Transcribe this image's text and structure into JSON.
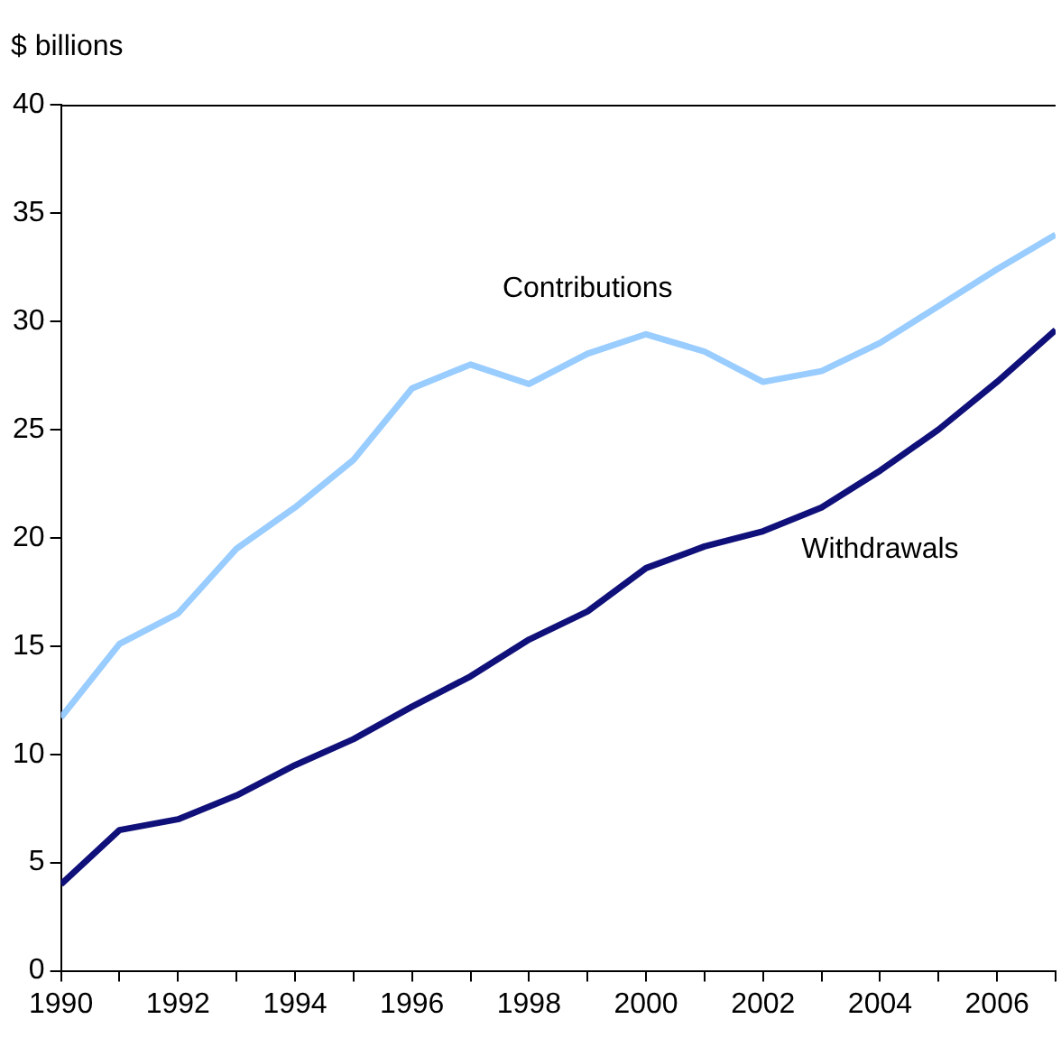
{
  "chart_data": {
    "type": "line",
    "ylabel": "$ billions",
    "x": [
      1990,
      1991,
      1992,
      1993,
      1994,
      1995,
      1996,
      1997,
      1998,
      1999,
      2000,
      2001,
      2002,
      2003,
      2004,
      2005,
      2006,
      2007
    ],
    "series": [
      {
        "name": "Contributions",
        "color": "#99ccff",
        "values": [
          11.7,
          15.1,
          16.5,
          19.5,
          21.4,
          23.6,
          26.9,
          28.0,
          27.1,
          28.5,
          29.4,
          28.6,
          27.2,
          27.7,
          29.0,
          30.7,
          32.4,
          34.0
        ]
      },
      {
        "name": "Withdrawals",
        "color": "#10107a",
        "values": [
          4.0,
          6.5,
          7.0,
          8.1,
          9.5,
          10.7,
          12.2,
          13.6,
          15.3,
          16.6,
          18.6,
          19.6,
          20.3,
          21.4,
          23.1,
          25.0,
          27.2,
          29.6
        ]
      }
    ],
    "xlim": [
      1990,
      2007
    ],
    "xticks": [
      1990,
      {
        "value": 1991,
        "label": null
      },
      1992,
      {
        "value": 1993,
        "label": null
      },
      1994,
      {
        "value": 1995,
        "label": null
      },
      1996,
      {
        "value": 1997,
        "label": null
      },
      1998,
      {
        "value": 1999,
        "label": null
      },
      2000,
      {
        "value": 2001,
        "label": null
      },
      2002,
      {
        "value": 2003,
        "label": null
      },
      2004,
      {
        "value": 2005,
        "label": null
      },
      2006,
      {
        "value": 2007,
        "label": null
      }
    ],
    "ylim": [
      0,
      40
    ],
    "yticks": [
      0,
      5,
      10,
      15,
      20,
      25,
      30,
      35,
      40
    ],
    "grid": false,
    "legend": false,
    "marker": "none",
    "line_style": "solid"
  }
}
